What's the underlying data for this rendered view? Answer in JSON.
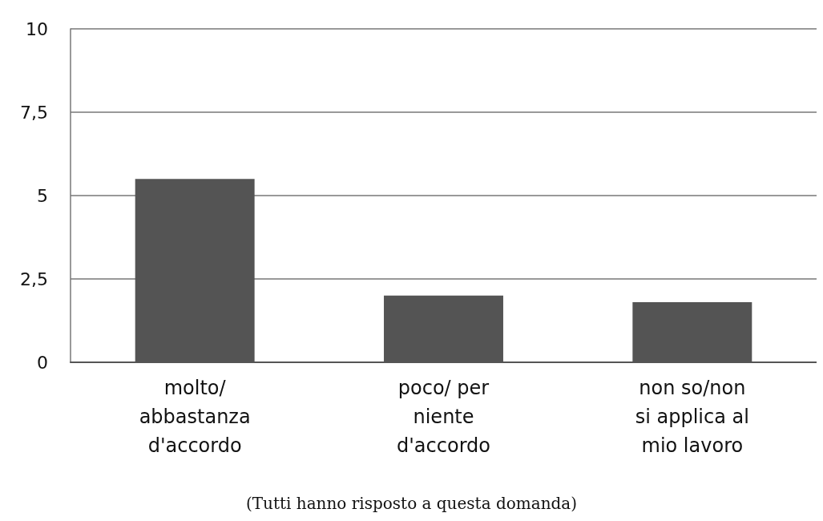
{
  "chart_data": {
    "type": "bar",
    "categories": [
      "molto/\nabbastanza\nd'accordo",
      "poco/ per\nniente\nd'accordo",
      "non so/non\nsi applica al\nmio lavoro"
    ],
    "values": [
      5.5,
      2,
      1.8
    ],
    "color": "#545454",
    "ylim": [
      0,
      10
    ],
    "yticks": [
      0,
      {
        "value": 2.5,
        "label": "2,5"
      },
      5,
      {
        "value": 7.5,
        "label": "7,5"
      },
      10
    ],
    "grid": "y",
    "annotations": [
      "(Tutti hanno risposto a questa domanda)"
    ]
  }
}
